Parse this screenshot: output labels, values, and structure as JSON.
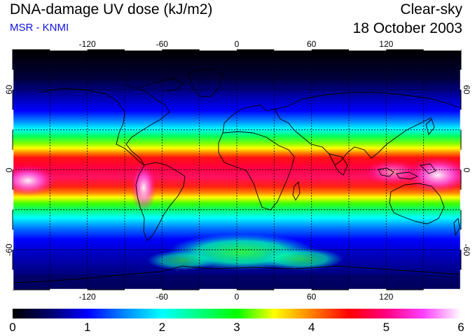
{
  "header": {
    "title": "DNA-damage UV dose (kJ/m2)",
    "subtitle": "MSR - KNMI",
    "mode": "Clear-sky",
    "date": "18 October 2003"
  },
  "map": {
    "projection": "equirectangular",
    "lon_range": [
      -180,
      180
    ],
    "lat_range": [
      -90,
      90
    ],
    "grid_lines": "dashed",
    "lon_ticks": [
      "-120",
      "-60",
      "0",
      "60",
      "120"
    ],
    "lat_ticks": [
      "60",
      "0",
      "-60"
    ],
    "lat_ticks_right": [
      "60",
      "0",
      "-60"
    ]
  },
  "colorbar": {
    "min": 0,
    "max": 6,
    "ticks": [
      "0",
      "1",
      "2",
      "3",
      "4",
      "5",
      "6"
    ],
    "stops": [
      {
        "value": 0,
        "color": "#000000"
      },
      {
        "value": 0.5,
        "color": "#00006a"
      },
      {
        "value": 1.0,
        "color": "#0000ff"
      },
      {
        "value": 1.5,
        "color": "#0088ff"
      },
      {
        "value": 2.0,
        "color": "#00ffff"
      },
      {
        "value": 2.5,
        "color": "#00ff80"
      },
      {
        "value": 3.0,
        "color": "#00ff00"
      },
      {
        "value": 3.5,
        "color": "#ffff00"
      },
      {
        "value": 4.0,
        "color": "#ff8000"
      },
      {
        "value": 4.5,
        "color": "#ff0000"
      },
      {
        "value": 5.0,
        "color": "#ff0080"
      },
      {
        "value": 5.5,
        "color": "#ff40ff"
      },
      {
        "value": 6.0,
        "color": "#ffffff"
      }
    ]
  }
}
